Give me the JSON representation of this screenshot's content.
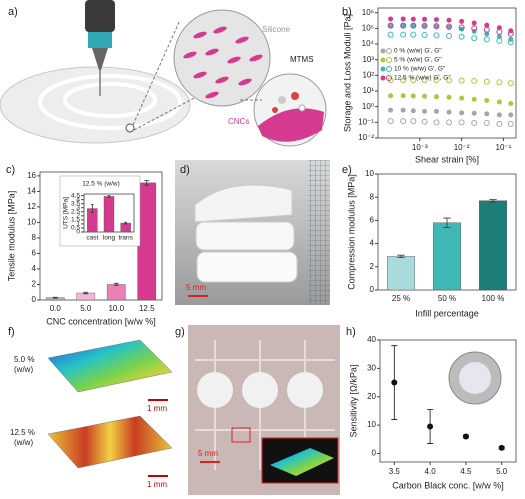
{
  "panels": {
    "a": {
      "label": "a)",
      "silicone": "Silicone",
      "cncs": "CNCs",
      "mtms": "MTMS"
    },
    "b": {
      "label": "b)"
    },
    "c": {
      "label": "c)"
    },
    "d": {
      "label": "d)",
      "scale": "5 mm"
    },
    "e": {
      "label": "e)"
    },
    "f": {
      "label": "f)",
      "samples": [
        {
          "label": [
            "5.0 %",
            "(w/w)"
          ],
          "scale": "1 mm"
        },
        {
          "label": [
            "12.5 %",
            "(w/w)"
          ],
          "scale": "1 mm"
        }
      ]
    },
    "g": {
      "label": "g)",
      "scale": "5 mm"
    },
    "h": {
      "label": "h)"
    }
  },
  "chart_data": [
    {
      "type": "scatter",
      "xlabel": "Shear strain [%]",
      "ylabel": "Storage and Loss Moduli [Pa]",
      "xscale": "log",
      "yscale": "log",
      "xlim": [
        0.0001,
        0.2
      ],
      "ylim": [
        0.01,
        2000000
      ],
      "xticks": [
        {
          "value": 0.001,
          "label": "10⁻³"
        },
        {
          "value": 0.01,
          "label": "10⁻²"
        },
        {
          "value": 0.1,
          "label": "10⁻¹"
        }
      ],
      "yticks": [
        {
          "value": 0.01,
          "label": "10⁻²"
        },
        {
          "value": 0.1,
          "label": "10⁻¹"
        },
        {
          "value": 1,
          "label": "10⁰"
        },
        {
          "value": 10,
          "label": "10¹"
        },
        {
          "value": 100,
          "label": "10²"
        },
        {
          "value": 1000,
          "label": "10³"
        },
        {
          "value": 10000,
          "label": "10⁴"
        },
        {
          "value": 100000,
          "label": "10⁵"
        },
        {
          "value": 1000000,
          "label": "10⁶"
        }
      ],
      "legend": "center left",
      "x": [
        0.0002,
        0.0004,
        0.0007,
        0.0013,
        0.0025,
        0.005,
        0.01,
        0.02,
        0.04,
        0.08,
        0.15
      ],
      "series": [
        {
          "name": "0 % (w/w) G', G''",
          "color": "#a6a6a6",
          "values": [
            0.6,
            0.6,
            0.55,
            0.5,
            0.5,
            0.45,
            0.4,
            0.38,
            0.35,
            0.3,
            0.3
          ],
          "loss_values": [
            0.12,
            0.12,
            0.12,
            0.11,
            0.1,
            0.1,
            0.1,
            0.09,
            0.09,
            0.08,
            0.08
          ]
        },
        {
          "name": "5 % (w/w) G', G''",
          "color": "#a8c93a",
          "values": [
            5,
            5,
            4.8,
            4.6,
            4.3,
            4,
            3.5,
            3,
            2.5,
            2,
            1.6
          ],
          "loss_values": [
            50,
            50,
            50,
            50,
            50,
            48,
            46,
            44,
            40,
            36,
            32
          ]
        },
        {
          "name": "10 % (w/w) G', G''",
          "color": "#3fb7b5",
          "values": [
            150000,
            150000,
            145000,
            140000,
            130000,
            115000,
            90000,
            65000,
            45000,
            30000,
            20000
          ],
          "loss_values": [
            40000,
            40000,
            40000,
            38000,
            36000,
            33000,
            29000,
            24000,
            20000,
            16000,
            13000
          ]
        },
        {
          "name": "12.5 % (w/w) G', G''",
          "color": "#d63a8f",
          "values": [
            400000,
            400000,
            390000,
            380000,
            360000,
            330000,
            280000,
            220000,
            160000,
            110000,
            70000
          ],
          "loss_values": [
            150000,
            150000,
            150000,
            145000,
            140000,
            130000,
            115000,
            100000,
            80000,
            60000,
            45000
          ]
        }
      ]
    },
    {
      "type": "bar",
      "xlabel": "CNC concentration [w/w %]",
      "ylabel": "Tensile modulus [MPa]",
      "categories": [
        "0.0",
        "5.0",
        "10.0",
        "12.5"
      ],
      "values": [
        0.3,
        0.9,
        2.0,
        15.1
      ],
      "errors": [
        0.05,
        0.1,
        0.15,
        0.3
      ],
      "colors": [
        "#b3b3b3",
        "#f4b6d2",
        "#ec7fb4",
        "#d63a8f"
      ],
      "ylim": [
        0,
        16.5
      ],
      "yticks": [
        0,
        2,
        4,
        6,
        8,
        10,
        12,
        14,
        16
      ]
    },
    {
      "type": "bar",
      "title": "12.5 % (w/w)",
      "ylabel": "UTS [MPa]",
      "categories": [
        "cast",
        "long",
        "trans"
      ],
      "values": [
        2.9,
        4.4,
        1.1
      ],
      "errors": [
        0.5,
        0.1,
        0.1
      ],
      "colors": [
        "#d63a8f",
        "#d63a8f",
        "#d63a8f"
      ],
      "ylim": [
        0,
        4.7
      ],
      "yticks": [
        0,
        0.5,
        1,
        1.5,
        2,
        2.5,
        3,
        3.5,
        4,
        4.5
      ]
    },
    {
      "type": "bar",
      "xlabel": "Infill percentage",
      "ylabel": "Compression modulus [MPa]",
      "categories": [
        "25 %",
        "50 %",
        "100 %"
      ],
      "values": [
        2.9,
        5.8,
        7.7
      ],
      "errors": [
        0.1,
        0.4,
        0.1
      ],
      "colors": [
        "#a8dcdc",
        "#3fb7b5",
        "#1d7d78"
      ],
      "ylim": [
        0,
        10
      ],
      "yticks": [
        0,
        2,
        4,
        6,
        8,
        10
      ]
    },
    {
      "type": "errorbar",
      "xlabel": "Carbon Black conc. [w/w %]",
      "ylabel": "Sensitivity [Ω/kPa]",
      "x": [
        3.5,
        4.0,
        4.5,
        5.0
      ],
      "values": [
        25,
        9.5,
        6,
        2
      ],
      "errors": [
        13,
        6,
        0.5,
        0.5
      ],
      "color": "#111111",
      "xlim": [
        3.3,
        5.2
      ],
      "ylim": [
        -3,
        40
      ],
      "xticks": [
        3.5,
        {
          "value": 4.0,
          "label": "4.0"
        },
        4.5,
        {
          "value": 5.0,
          "label": "5.0"
        }
      ],
      "yticks": [
        0,
        10,
        20,
        30,
        40
      ]
    }
  ]
}
